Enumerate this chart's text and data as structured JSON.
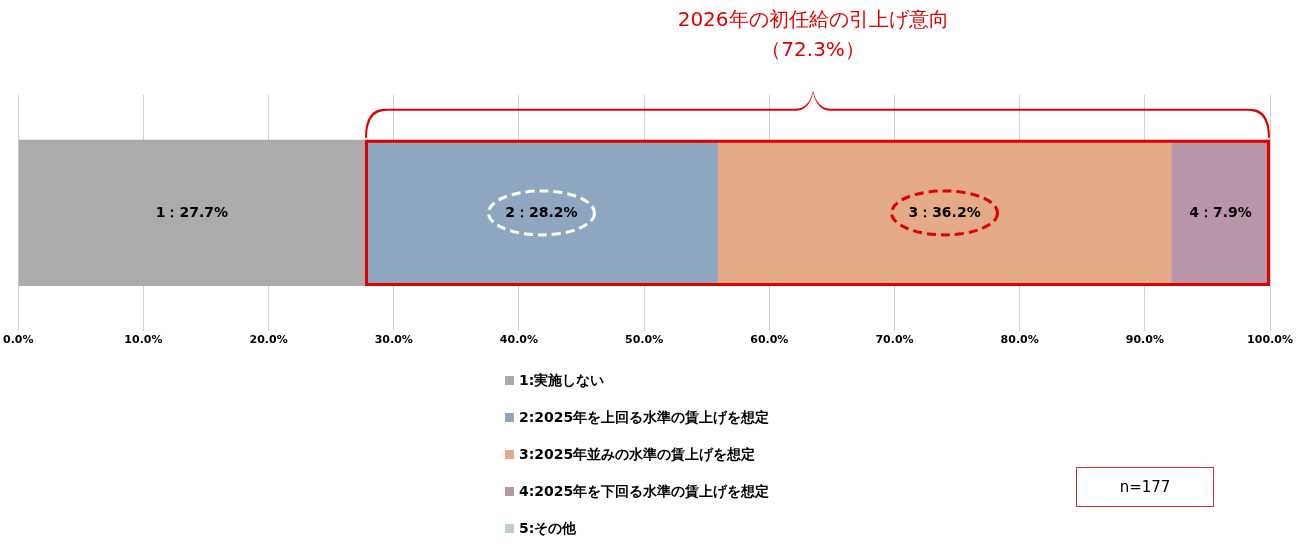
{
  "chart_data": {
    "type": "bar",
    "orientation": "horizontal",
    "stacked": true,
    "categories": [
      null
    ],
    "series": [
      {
        "name": "1:実施しない",
        "color": "#ababab",
        "values": [
          27.7
        ],
        "value_labels": [
          "1：27.7%"
        ]
      },
      {
        "name": "2:2025年を上回る水準の賃上げを想定",
        "color": "#8ea6bf",
        "values": [
          28.2
        ],
        "value_labels": [
          "2：28.2%"
        ]
      },
      {
        "name": "3:2025年並みの水準の賃上げを想定",
        "color": "#e5ab89",
        "values": [
          36.2
        ],
        "value_labels": [
          "3：36.2%"
        ]
      },
      {
        "name": "4:2025年を下回る水準の賃上げを想定",
        "color": "#b896aa",
        "values": [
          7.9
        ],
        "value_labels": [
          "4：7.9%"
        ]
      },
      {
        "name": "5:その他",
        "color": "#bfd0c8",
        "values": [
          0
        ],
        "value_labels": [
          null
        ]
      }
    ],
    "xlim": [
      0,
      100
    ],
    "xticks": [
      {
        "value": 0,
        "label": "0.0%"
      },
      {
        "value": 10,
        "label": "10.0%"
      },
      {
        "value": 20,
        "label": "20.0%"
      },
      {
        "value": 30,
        "label": "30.0%"
      },
      {
        "value": 40,
        "label": "40.0%"
      },
      {
        "value": 50,
        "label": "50.0%"
      },
      {
        "value": 60,
        "label": "60.0%"
      },
      {
        "value": 70,
        "label": "70.0%"
      },
      {
        "value": 80,
        "label": "80.0%"
      },
      {
        "value": 90,
        "label": "90.0%"
      },
      {
        "value": 100,
        "label": "100.0%"
      }
    ],
    "grid": "x",
    "tick_labels": "x",
    "legend": "bottom",
    "annotations": [
      "2026年の初任給の引上げ意向",
      "（72.3%）",
      "n=177"
    ]
  }
}
